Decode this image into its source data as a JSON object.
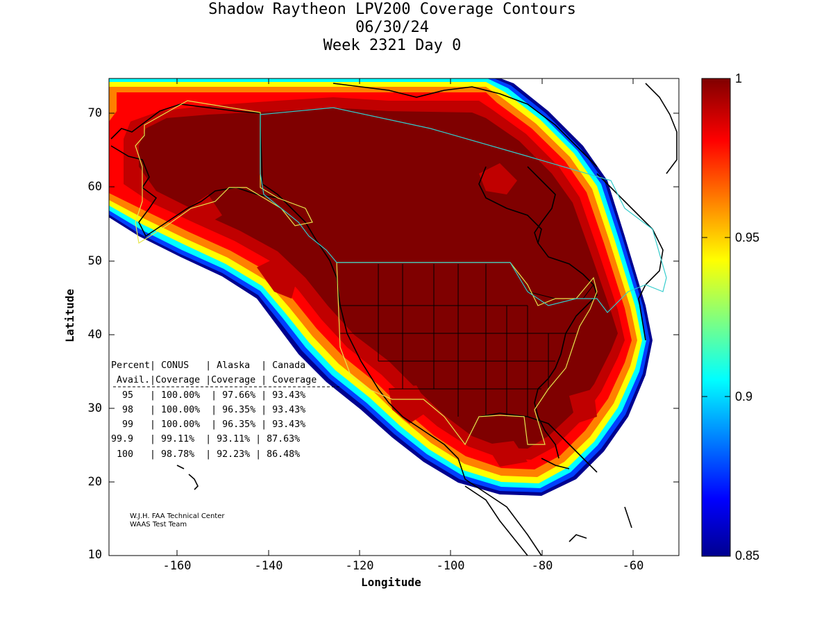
{
  "title": {
    "line1": "Shadow Raytheon LPV200 Coverage Contours",
    "line2": "06/30/24",
    "line3": "Week 2321 Day 0"
  },
  "axes": {
    "xlabel": "Longitude",
    "ylabel": "Latitude",
    "x_ticks": [
      "-160",
      "-140",
      "-120",
      "-100",
      "-80",
      "-60"
    ],
    "y_ticks": [
      "70",
      "60",
      "50",
      "40",
      "30",
      "20",
      "10"
    ],
    "xlim": [
      -175,
      -50
    ],
    "ylim": [
      10,
      75
    ]
  },
  "colorbar": {
    "ticks": [
      "1",
      "0.95",
      "0.9",
      "0.85"
    ],
    "range": [
      0.85,
      1.0
    ],
    "colormap": "jet"
  },
  "stats_table": {
    "header1": "Percent| CONUS   | Alaska  | Canada",
    "header2": " Avail.|Coverage |Coverage | Coverage",
    "rows": [
      "  95   | 100.00%  | 97.66% | 93.43%",
      "  98   | 100.00%  | 96.35% | 93.43%",
      "  99   | 100.00%  | 96.35% | 93.43%",
      "99.9   | 99.11%  | 93.11% | 87.63%",
      " 100   | 98.78%  | 92.23% | 86.48%"
    ]
  },
  "credit": {
    "line1": "W.J.H. FAA Technical Center",
    "line2": "WAAS Test Team"
  },
  "colors": {
    "core": "#7f0000",
    "band_red": "#c00000",
    "band_bright": "#ff0000",
    "band_orange": "#ff8000",
    "band_yellow": "#ffff00",
    "band_cyan": "#00ffff",
    "band_blue": "#0040ff",
    "band_navy": "#00008f",
    "alaska_conus_boundary": "#e6e64c",
    "canada_boundary": "#33cccc"
  },
  "chart_data": {
    "type": "heatmap",
    "title": "Shadow Raytheon LPV200 Coverage Contours",
    "xlabel": "Longitude",
    "ylabel": "Latitude",
    "xlim": [
      -175,
      -50
    ],
    "ylim": [
      10,
      75
    ],
    "value_range": [
      0.85,
      1.0
    ],
    "coverage_table": {
      "columns": [
        "Percent Avail.",
        "CONUS Coverage",
        "Alaska Coverage",
        "Canada Coverage"
      ],
      "rows": [
        [
          "95",
          "100.00%",
          "97.66%",
          "93.43%"
        ],
        [
          "98",
          "100.00%",
          "96.35%",
          "93.43%"
        ],
        [
          "99",
          "100.00%",
          "96.35%",
          "93.43%"
        ],
        [
          "99.9",
          "99.11%",
          "93.11%",
          "87.63%"
        ],
        [
          "100",
          "98.78%",
          "92.23%",
          "86.48%"
        ]
      ]
    }
  }
}
